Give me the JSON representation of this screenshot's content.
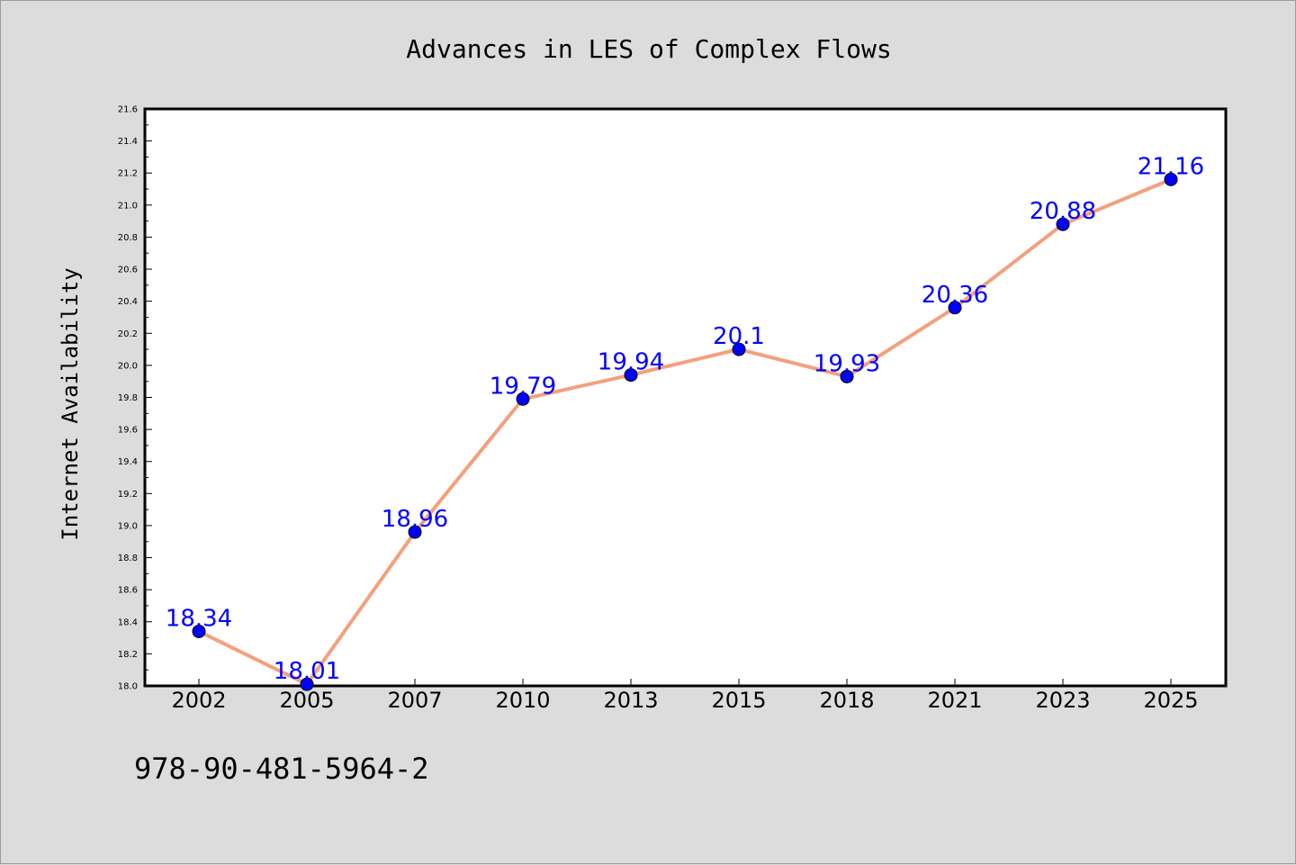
{
  "chart_data": {
    "type": "line",
    "title": "Advances in LES of Complex Flows",
    "xlabel": "",
    "ylabel": "Internet Availability",
    "categories": [
      "2002",
      "2005",
      "2007",
      "2010",
      "2013",
      "2015",
      "2018",
      "2021",
      "2023",
      "2025"
    ],
    "series": [
      {
        "values": [
          18.34,
          18.01,
          18.96,
          19.79,
          19.94,
          20.1,
          19.93,
          20.36,
          20.88,
          21.16
        ],
        "labels": [
          "18.34",
          "18.01",
          "18.96",
          "19.79",
          "19.94",
          "20.1",
          "19.93",
          "20.36",
          "20.88",
          "21.16"
        ],
        "line_color": "#f4a07c",
        "marker_color": "#0000ff",
        "label_color": "#0000ff"
      }
    ],
    "ylim": [
      18.0,
      21.6
    ],
    "yticks": [
      "18.0",
      "18.2",
      "18.4",
      "18.6",
      "18.8",
      "19.0",
      "19.2",
      "19.4",
      "19.6",
      "19.8",
      "20.0",
      "20.2",
      "20.4",
      "20.6",
      "20.8",
      "21.0",
      "21.2",
      "21.4",
      "21.6"
    ],
    "grid": false,
    "legend": "none"
  },
  "footer_text": "978-90-481-5964-2",
  "colors": {
    "background": "#dcdcdc",
    "plot_area": "#ffffff"
  }
}
